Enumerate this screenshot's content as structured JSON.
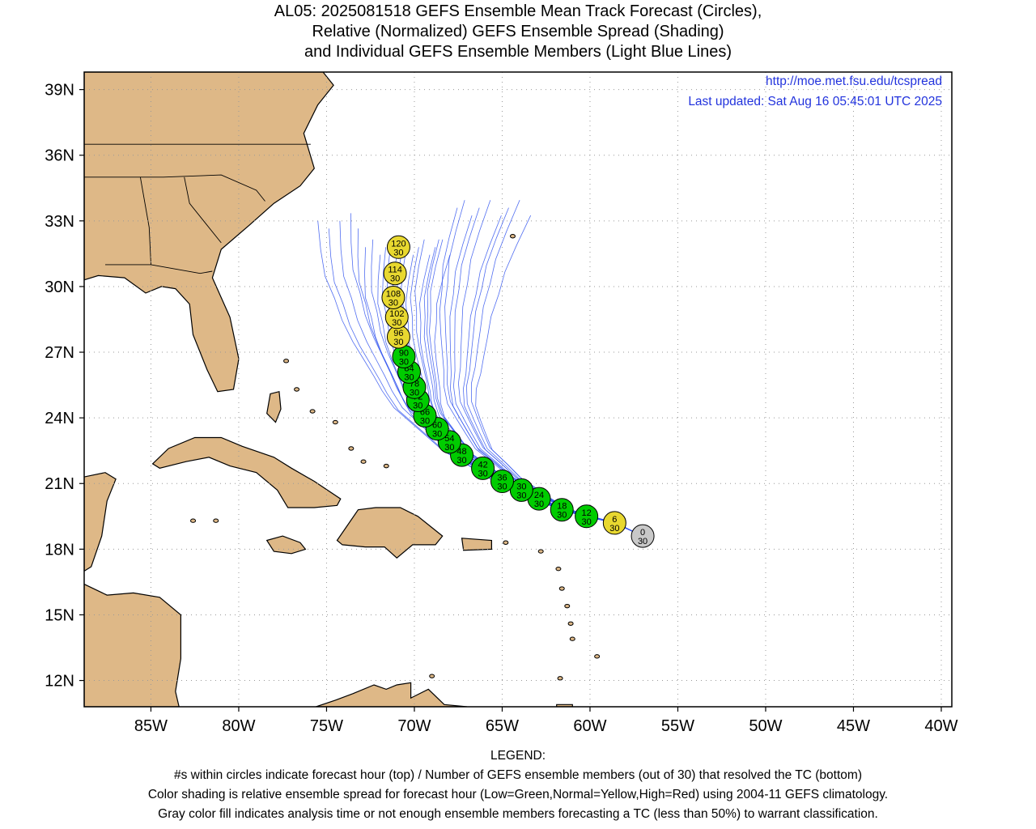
{
  "title": {
    "line1": "AL05: 2025081518 GEFS Ensemble Mean Track Forecast (Circles),",
    "line2": "Relative (Normalized) GEFS Ensemble Spread (Shading)",
    "line3": "and Individual GEFS Ensemble Members (Light Blue Lines)"
  },
  "credits": {
    "url": "http://moe.met.fsu.edu/tcspread",
    "updated": "Last updated: Sat Aug 16 05:45:01 UTC 2025"
  },
  "map": {
    "lon_range": [
      -88.8,
      -39.4
    ],
    "lat_range": [
      10.8,
      39.8
    ],
    "lon_ticks": [
      "85W",
      "80W",
      "75W",
      "70W",
      "65W",
      "60W",
      "55W",
      "50W",
      "45W",
      "40W"
    ],
    "lat_ticks": [
      "39N",
      "36N",
      "33N",
      "30N",
      "27N",
      "24N",
      "21N",
      "18N",
      "15N",
      "12N"
    ],
    "grid": true,
    "colors": {
      "land": "#deb887",
      "water": "#ffffff",
      "members": "#3355ee",
      "green": "#00cc00",
      "yellow": "#e8d830",
      "gray": "#c8c8c8"
    }
  },
  "track": [
    {
      "hour": "0",
      "members": "30",
      "lon": -57.0,
      "lat": 18.6,
      "color": "gray"
    },
    {
      "hour": "6",
      "members": "30",
      "lon": -58.6,
      "lat": 19.2,
      "color": "yellow"
    },
    {
      "hour": "12",
      "members": "30",
      "lon": -60.2,
      "lat": 19.5,
      "color": "green"
    },
    {
      "hour": "18",
      "members": "30",
      "lon": -61.6,
      "lat": 19.8,
      "color": "green"
    },
    {
      "hour": "24",
      "members": "30",
      "lon": -62.9,
      "lat": 20.3,
      "color": "green"
    },
    {
      "hour": "30",
      "members": "30",
      "lon": -63.9,
      "lat": 20.7,
      "color": "green"
    },
    {
      "hour": "36",
      "members": "30",
      "lon": -65.0,
      "lat": 21.1,
      "color": "green"
    },
    {
      "hour": "42",
      "members": "30",
      "lon": -66.1,
      "lat": 21.7,
      "color": "green"
    },
    {
      "hour": "48",
      "members": "30",
      "lon": -67.3,
      "lat": 22.3,
      "color": "green"
    },
    {
      "hour": "54",
      "members": "30",
      "lon": -68.0,
      "lat": 22.9,
      "color": "green"
    },
    {
      "hour": "60",
      "members": "30",
      "lon": -68.7,
      "lat": 23.5,
      "color": "green"
    },
    {
      "hour": "66",
      "members": "30",
      "lon": -69.4,
      "lat": 24.1,
      "color": "green"
    },
    {
      "hour": "72",
      "members": "30",
      "lon": -69.8,
      "lat": 24.8,
      "color": "green"
    },
    {
      "hour": "78",
      "members": "30",
      "lon": -70.0,
      "lat": 25.4,
      "color": "green"
    },
    {
      "hour": "84",
      "members": "30",
      "lon": -70.3,
      "lat": 26.1,
      "color": "green"
    },
    {
      "hour": "90",
      "members": "30",
      "lon": -70.6,
      "lat": 26.8,
      "color": "green"
    },
    {
      "hour": "96",
      "members": "30",
      "lon": -70.9,
      "lat": 27.7,
      "color": "yellow"
    },
    {
      "hour": "102",
      "members": "30",
      "lon": -71.0,
      "lat": 28.6,
      "color": "yellow"
    },
    {
      "hour": "108",
      "members": "30",
      "lon": -71.2,
      "lat": 29.5,
      "color": "yellow"
    },
    {
      "hour": "114",
      "members": "30",
      "lon": -71.1,
      "lat": 30.6,
      "color": "yellow"
    },
    {
      "hour": "120",
      "members": "30",
      "lon": -70.9,
      "lat": 31.8,
      "color": "yellow"
    }
  ],
  "legend": {
    "heading": "LEGEND:",
    "line1": "#s within circles indicate forecast hour (top) / Number of GEFS ensemble members (out of 30) that resolved the TC (bottom)",
    "line2": "Color shading is relative ensemble spread for forecast hour (Low=Green,Normal=Yellow,High=Red) using 2004-11 GEFS climatology.",
    "line3": "Gray color fill indicates analysis time or not enough ensemble members forecasting a TC (less than 50%) to warrant classification."
  }
}
